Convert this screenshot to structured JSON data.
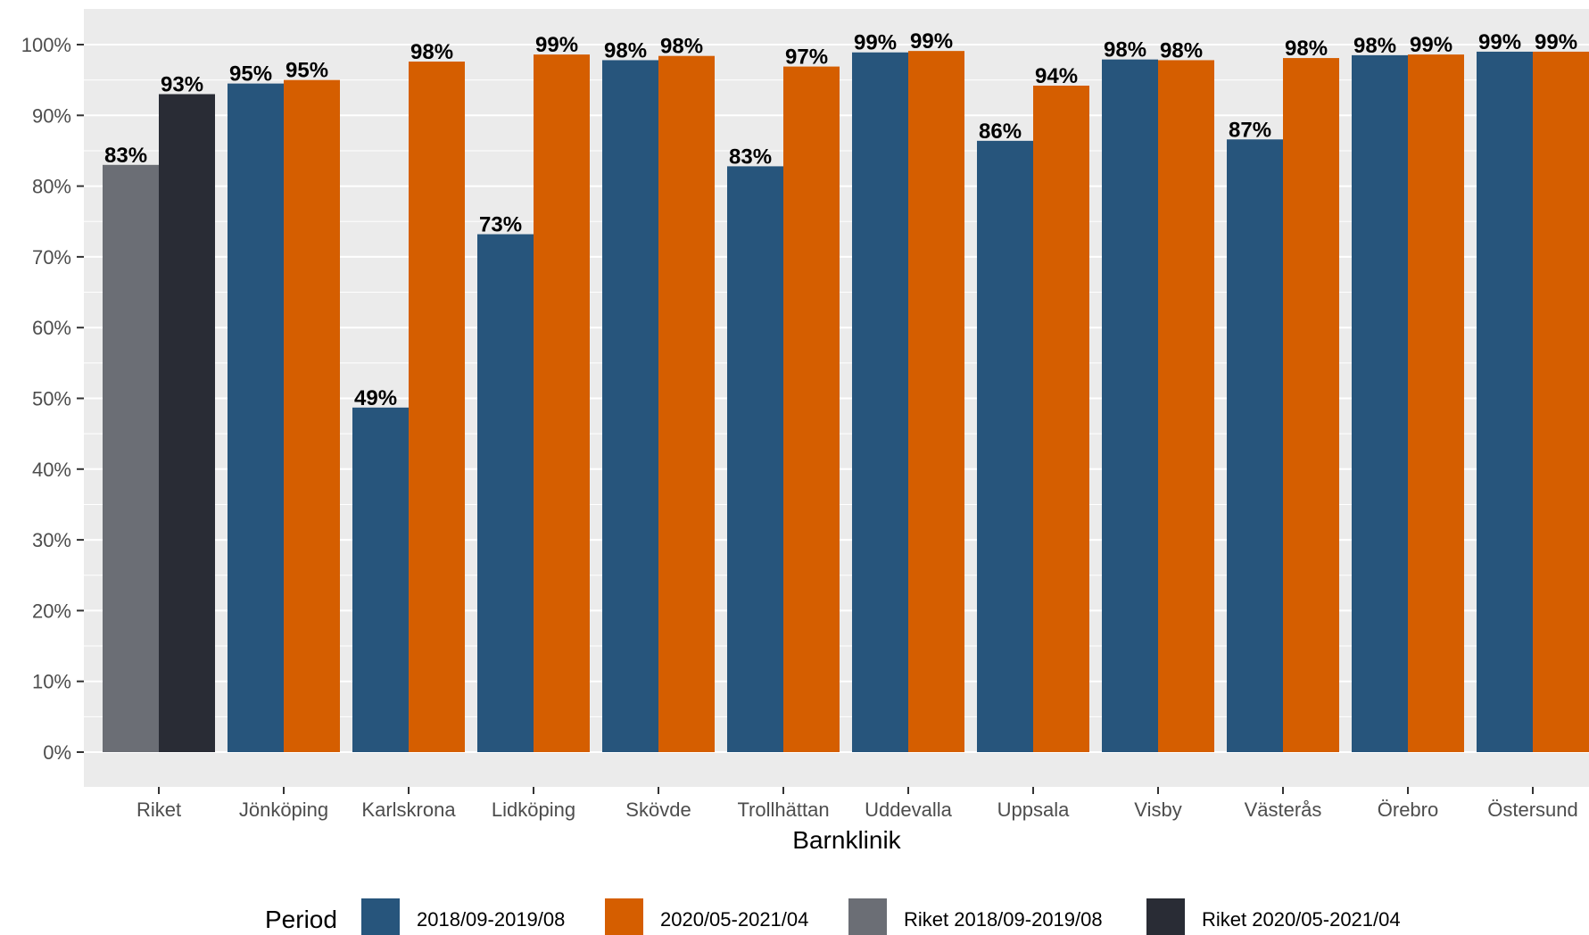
{
  "chart_data": {
    "type": "bar",
    "xlabel": "Barnklinik",
    "ylabel": "",
    "ylim": [
      0,
      100
    ],
    "y_ticks": [
      "0%",
      "10%",
      "20%",
      "30%",
      "40%",
      "50%",
      "60%",
      "70%",
      "80%",
      "90%",
      "100%"
    ],
    "grid": true,
    "legend_position": "bottom",
    "legend_title": "Period",
    "legend": [
      {
        "label": "2018/09-2019/08",
        "color": "#27557c"
      },
      {
        "label": "2020/05-2021/04",
        "color": "#d55e00"
      },
      {
        "label": "Riket 2018/09-2019/08",
        "color": "#6b6e75"
      },
      {
        "label": "Riket 2020/05-2021/04",
        "color": "#292c35"
      }
    ],
    "categories": [
      "Riket",
      "Jönköping",
      "Karlskrona",
      "Lidköping",
      "Skövde",
      "Trollhättan",
      "Uddevalla",
      "Uppsala",
      "Visby",
      "Västerås",
      "Örebro",
      "Östersund"
    ],
    "groups": [
      {
        "category": "Riket",
        "bars": [
          {
            "period": "Riket 2018/09-2019/08",
            "value": 83,
            "label": "83%",
            "color": "#6b6e75"
          },
          {
            "period": "Riket 2020/05-2021/04",
            "value": 93,
            "label": "93%",
            "color": "#292c35"
          }
        ]
      },
      {
        "category": "Jönköping",
        "bars": [
          {
            "period": "2018/09-2019/08",
            "value": 94.5,
            "label": "95%",
            "color": "#27557c"
          },
          {
            "period": "2020/05-2021/04",
            "value": 95,
            "label": "95%",
            "color": "#d55e00"
          }
        ]
      },
      {
        "category": "Karlskrona",
        "bars": [
          {
            "period": "2018/09-2019/08",
            "value": 48.7,
            "label": "49%",
            "color": "#27557c"
          },
          {
            "period": "2020/05-2021/04",
            "value": 97.6,
            "label": "98%",
            "color": "#d55e00"
          }
        ]
      },
      {
        "category": "Lidköping",
        "bars": [
          {
            "period": "2018/09-2019/08",
            "value": 73.2,
            "label": "73%",
            "color": "#27557c"
          },
          {
            "period": "2020/05-2021/04",
            "value": 98.6,
            "label": "99%",
            "color": "#d55e00"
          }
        ]
      },
      {
        "category": "Skövde",
        "bars": [
          {
            "period": "2018/09-2019/08",
            "value": 97.8,
            "label": "98%",
            "color": "#27557c"
          },
          {
            "period": "2020/05-2021/04",
            "value": 98.4,
            "label": "98%",
            "color": "#d55e00"
          }
        ]
      },
      {
        "category": "Trollhättan",
        "bars": [
          {
            "period": "2018/09-2019/08",
            "value": 82.8,
            "label": "83%",
            "color": "#27557c"
          },
          {
            "period": "2020/05-2021/04",
            "value": 96.9,
            "label": "97%",
            "color": "#d55e00"
          }
        ]
      },
      {
        "category": "Uddevalla",
        "bars": [
          {
            "period": "2018/09-2019/08",
            "value": 98.9,
            "label": "99%",
            "color": "#27557c"
          },
          {
            "period": "2020/05-2021/04",
            "value": 99.1,
            "label": "99%",
            "color": "#d55e00"
          }
        ]
      },
      {
        "category": "Uppsala",
        "bars": [
          {
            "period": "2018/09-2019/08",
            "value": 86.4,
            "label": "86%",
            "color": "#27557c"
          },
          {
            "period": "2020/05-2021/04",
            "value": 94.2,
            "label": "94%",
            "color": "#d55e00"
          }
        ]
      },
      {
        "category": "Visby",
        "bars": [
          {
            "period": "2018/09-2019/08",
            "value": 97.9,
            "label": "98%",
            "color": "#27557c"
          },
          {
            "period": "2020/05-2021/04",
            "value": 97.8,
            "label": "98%",
            "color": "#d55e00"
          }
        ]
      },
      {
        "category": "Västerås",
        "bars": [
          {
            "period": "2018/09-2019/08",
            "value": 86.6,
            "label": "87%",
            "color": "#27557c"
          },
          {
            "period": "2020/05-2021/04",
            "value": 98.1,
            "label": "98%",
            "color": "#d55e00"
          }
        ]
      },
      {
        "category": "Örebro",
        "bars": [
          {
            "period": "2018/09-2019/08",
            "value": 98.5,
            "label": "98%",
            "color": "#27557c"
          },
          {
            "period": "2020/05-2021/04",
            "value": 98.6,
            "label": "99%",
            "color": "#d55e00"
          }
        ]
      },
      {
        "category": "Östersund",
        "bars": [
          {
            "period": "2018/09-2019/08",
            "value": 99.0,
            "label": "99%",
            "color": "#27557c"
          },
          {
            "period": "2020/05-2021/04",
            "value": 99.0,
            "label": "99%",
            "color": "#d55e00"
          }
        ]
      }
    ]
  }
}
